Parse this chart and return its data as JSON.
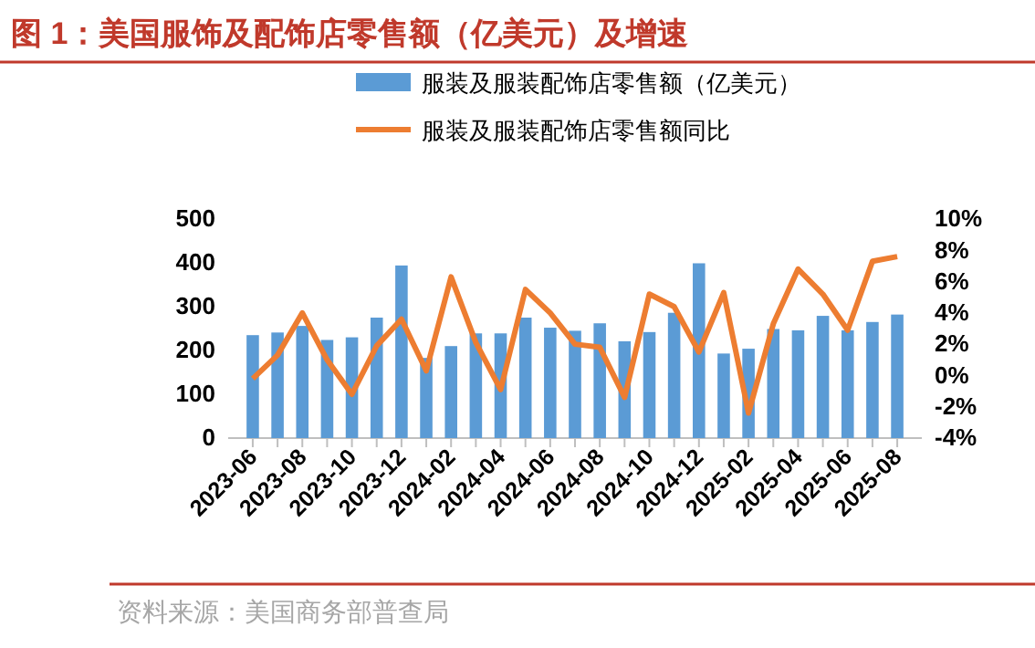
{
  "chart_data": {
    "type": "bar",
    "title": "图 1：美国服饰及配饰店零售额（亿美元）及增速",
    "categories": [
      "2023-06",
      null,
      "2023-08",
      null,
      "2023-10",
      null,
      "2023-12",
      null,
      "2024-02",
      null,
      "2024-04",
      null,
      "2024-06",
      null,
      "2024-08",
      null,
      "2024-10",
      null,
      "2024-12",
      null,
      "2025-02",
      null,
      "2025-04",
      null,
      "2025-06",
      null,
      "2025-08"
    ],
    "series": [
      {
        "name": "服装及服装配饰店零售额（亿美元）",
        "color": "#5b9bd5",
        "values": [
          235,
          241,
          256,
          224,
          230,
          275,
          394,
          183,
          210,
          239,
          239,
          275,
          252,
          245,
          262,
          221,
          242,
          286,
          399,
          193,
          204,
          249,
          246,
          279,
          246,
          265,
          282
        ]
      },
      {
        "name": "服装及服装配饰店零售额同比",
        "type": "line",
        "axis": "y2",
        "color": "#ed7d31",
        "values": [
          -0.2,
          1.3,
          4.0,
          1.0,
          -1.2,
          1.9,
          3.6,
          0.3,
          6.3,
          2.1,
          -0.9,
          5.5,
          4.0,
          2.0,
          1.8,
          -1.4,
          5.2,
          4.4,
          1.5,
          5.3,
          -2.4,
          3.3,
          6.8,
          5.2,
          2.9,
          7.3,
          7.6
        ]
      }
    ],
    "ylim": [
      0,
      500
    ],
    "yticks": [
      0,
      100,
      200,
      300,
      400,
      500
    ],
    "y2lim": [
      -4,
      10
    ],
    "y2ticks": [
      {
        "value": -4,
        "label": "-4%"
      },
      {
        "value": -2,
        "label": "-2%"
      },
      {
        "value": 0,
        "label": "0%"
      },
      {
        "value": 2,
        "label": "2%"
      },
      {
        "value": 4,
        "label": "4%"
      },
      {
        "value": 6,
        "label": "6%"
      },
      {
        "value": 8,
        "label": "8%"
      },
      {
        "value": 10,
        "label": "10%"
      }
    ],
    "legend": "top",
    "marker": "none",
    "line_style": "solid",
    "annotations": [
      "资料来源：美国商务部普查局"
    ]
  }
}
